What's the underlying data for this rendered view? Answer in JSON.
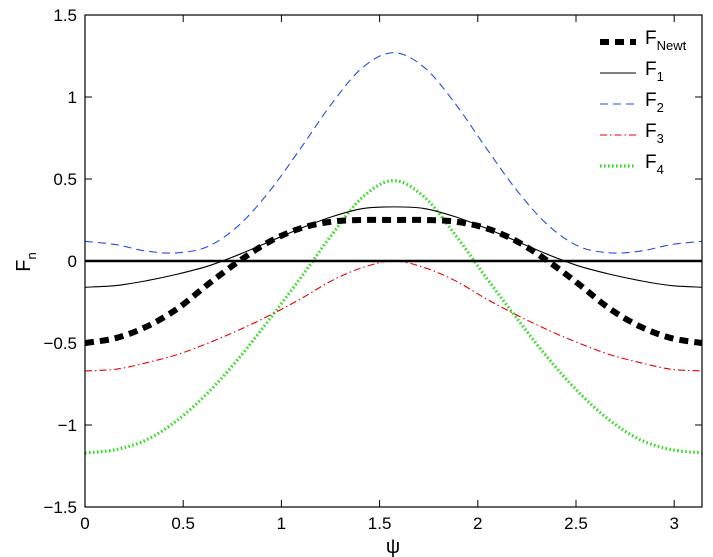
{
  "chart_data": {
    "type": "line",
    "xlabel": "ψ",
    "ylabel": "F",
    "ylabel_sub": "n",
    "xlim": [
      0,
      3.1416
    ],
    "ylim": [
      -1.5,
      1.5
    ],
    "xticks": [
      "0",
      "0.5",
      "1",
      "1.5",
      "2",
      "2.5",
      "3"
    ],
    "xtick_values": [
      0,
      0.5,
      1,
      1.5,
      2,
      2.5,
      3
    ],
    "yticks": [
      "−1.5",
      "−1",
      "−0.5",
      "0",
      "0.5",
      "1",
      "1.5"
    ],
    "ytick_values": [
      -1.5,
      -1,
      -0.5,
      0,
      0.5,
      1,
      1.5
    ],
    "grid": false,
    "legend_position": "top-right",
    "x": [
      0,
      0.1571,
      0.3142,
      0.4712,
      0.6283,
      0.7854,
      0.9425,
      1.0996,
      1.2566,
      1.4137,
      1.5708,
      1.7279,
      1.885,
      2.042,
      2.1991,
      2.3562,
      2.5133,
      2.6704,
      2.8274,
      2.9845,
      3.1416
    ],
    "zero_line": {
      "y": 0,
      "color": "#000000"
    },
    "series": [
      {
        "name": "F",
        "name_sub": "Newt",
        "color": "#000000",
        "style": "thick-dashed",
        "values": [
          -0.5,
          -0.47,
          -0.4,
          -0.29,
          -0.14,
          0.0,
          0.12,
          0.2,
          0.24,
          0.25,
          0.25,
          0.25,
          0.24,
          0.2,
          0.12,
          0.0,
          -0.14,
          -0.29,
          -0.4,
          -0.47,
          -0.5
        ]
      },
      {
        "name": "F",
        "name_sub": "1",
        "color": "#000000",
        "style": "solid",
        "values": [
          -0.16,
          -0.15,
          -0.12,
          -0.08,
          -0.03,
          0.04,
          0.12,
          0.2,
          0.27,
          0.32,
          0.33,
          0.32,
          0.27,
          0.2,
          0.12,
          0.04,
          -0.03,
          -0.08,
          -0.12,
          -0.15,
          -0.16
        ]
      },
      {
        "name": "F",
        "name_sub": "2",
        "color": "#1f4fe6",
        "style": "dashed",
        "values": [
          0.12,
          0.1,
          0.06,
          0.05,
          0.09,
          0.22,
          0.43,
          0.69,
          0.96,
          1.18,
          1.27,
          1.18,
          0.96,
          0.69,
          0.43,
          0.22,
          0.09,
          0.05,
          0.06,
          0.1,
          0.12
        ]
      },
      {
        "name": "F",
        "name_sub": "3",
        "color": "#e60000",
        "style": "dash-dot",
        "values": [
          -0.67,
          -0.66,
          -0.62,
          -0.57,
          -0.5,
          -0.42,
          -0.33,
          -0.23,
          -0.12,
          -0.04,
          0.0,
          -0.04,
          -0.12,
          -0.23,
          -0.33,
          -0.42,
          -0.5,
          -0.57,
          -0.62,
          -0.66,
          -0.67
        ]
      },
      {
        "name": "F",
        "name_sub": "4",
        "color": "#33dd22",
        "style": "dotted",
        "values": [
          -1.17,
          -1.15,
          -1.09,
          -0.97,
          -0.8,
          -0.59,
          -0.35,
          -0.1,
          0.16,
          0.39,
          0.49,
          0.39,
          0.16,
          -0.1,
          -0.35,
          -0.59,
          -0.8,
          -0.97,
          -1.09,
          -1.15,
          -1.17
        ]
      }
    ]
  }
}
